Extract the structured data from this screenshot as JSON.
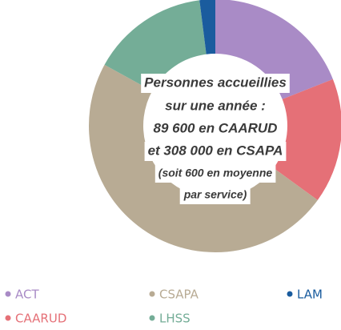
{
  "chart_data": {
    "type": "donut",
    "categories": [
      "ACT",
      "CAARUD",
      "CSAPA",
      "LHSS",
      "LAM"
    ],
    "values": [
      19,
      16,
      48,
      15,
      2
    ],
    "colors": [
      "#a98bc6",
      "#e57077",
      "#b8ab94",
      "#74ad97",
      "#1a5c9e"
    ],
    "center_text": [
      "Personnes accueillies",
      "sur une année :",
      "89 600 en CAARUD",
      "et 308 000 en CSAPA",
      "(soit 600 en moyenne",
      "par service)"
    ],
    "legend": true
  }
}
